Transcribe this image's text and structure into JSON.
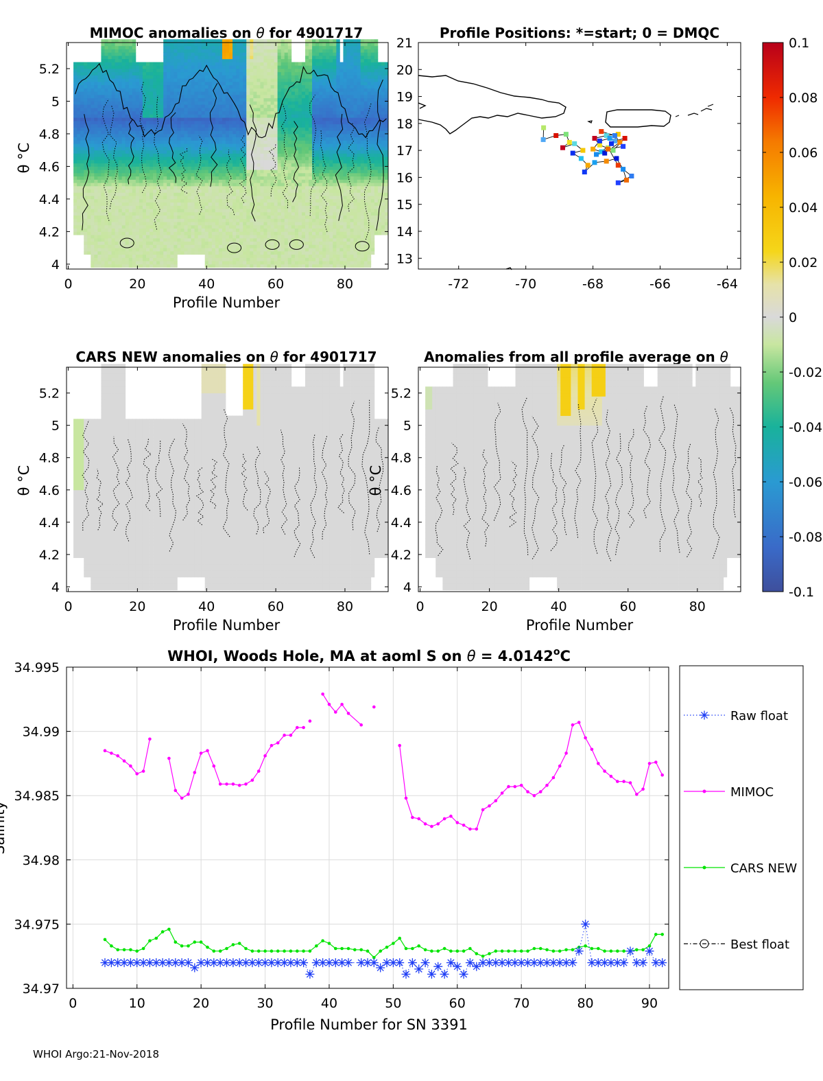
{
  "figure": {
    "footer": "WHOI Argo:21-Nov-2018",
    "colors": {
      "raw_float": "#1f3ef5",
      "mimoc": "#ff00ff",
      "cars": "#00e400",
      "best": "#000000",
      "contour": "#000000",
      "land": "#000000"
    }
  },
  "chart_data": [
    {
      "type": "heatmap",
      "title_parts": [
        "MIMOC anomalies on ",
        "θ",
        "  for 4901717"
      ],
      "xlabel": "Profile Number",
      "ylabel": "θ °C",
      "xlim": [
        -0.5,
        92.5
      ],
      "ylim": [
        3.97,
        5.36
      ],
      "xticks": [
        0,
        20,
        40,
        60,
        80
      ],
      "yticks": [
        4,
        4.2,
        4.4,
        4.6,
        4.8,
        5,
        5.2
      ],
      "colormap": "parula-jet",
      "clim": [
        -0.1,
        0.1
      ],
      "anomaly_pattern": "mimoc"
    },
    {
      "type": "scatter",
      "title": "Profile Positions: *=start; 0 = DMQC",
      "xlim": [
        -73.2,
        -63.6
      ],
      "ylim": [
        12.6,
        21.0
      ],
      "xticks": [
        -72,
        -70,
        -68,
        -66,
        -64
      ],
      "yticks": [
        13,
        14,
        15,
        16,
        17,
        18,
        19,
        20,
        21
      ],
      "track": [
        [
          -69.47,
          17.84
        ],
        [
          -69.48,
          17.4
        ],
        [
          -69.1,
          17.55
        ],
        [
          -68.8,
          17.6
        ],
        [
          -68.7,
          17.3
        ],
        [
          -68.9,
          17.1
        ],
        [
          -68.55,
          17.25
        ],
        [
          -68.3,
          17.0
        ],
        [
          -68.6,
          16.9
        ],
        [
          -68.35,
          16.7
        ],
        [
          -68.15,
          16.45
        ],
        [
          -68.25,
          16.2
        ],
        [
          -67.95,
          16.55
        ],
        [
          -67.6,
          16.6
        ],
        [
          -67.3,
          16.7
        ],
        [
          -67.1,
          16.3
        ],
        [
          -67.0,
          15.9
        ],
        [
          -67.25,
          15.8
        ],
        [
          -66.85,
          16.05
        ],
        [
          -67.25,
          16.45
        ],
        [
          -67.55,
          17.1
        ],
        [
          -67.35,
          17.35
        ],
        [
          -67.05,
          17.45
        ],
        [
          -67.4,
          17.0
        ],
        [
          -67.8,
          17.2
        ],
        [
          -67.95,
          17.45
        ],
        [
          -67.6,
          17.55
        ],
        [
          -67.25,
          17.6
        ],
        [
          -67.45,
          17.25
        ],
        [
          -67.75,
          16.95
        ],
        [
          -68.0,
          17.05
        ],
        [
          -67.8,
          17.35
        ],
        [
          -67.5,
          17.45
        ],
        [
          -67.2,
          17.3
        ],
        [
          -67.65,
          16.9
        ],
        [
          -67.9,
          16.85
        ],
        [
          -67.55,
          17.05
        ],
        [
          -67.1,
          17.15
        ],
        [
          -67.35,
          17.55
        ],
        [
          -67.75,
          17.7
        ]
      ],
      "colorbar": {
        "ticks": [
          0.1,
          0.08,
          0.06,
          0.04,
          0.02,
          0,
          -0.02,
          -0.04,
          -0.06,
          -0.08,
          -0.1
        ],
        "tick_labels": [
          "0.1",
          "0.08",
          "0.06",
          "0.04",
          "0.02",
          "0",
          "-0.02",
          "-0.04",
          "-0.06",
          "-0.08",
          "-0.1"
        ]
      }
    },
    {
      "type": "heatmap",
      "title_parts": [
        "CARS NEW anomalies on ",
        "θ",
        " for 4901717"
      ],
      "xlabel": "Profile Number",
      "ylabel": "θ °C",
      "xlim": [
        -0.5,
        92.5
      ],
      "ylim": [
        3.97,
        5.36
      ],
      "xticks": [
        0,
        20,
        40,
        60,
        80
      ],
      "yticks": [
        4,
        4.2,
        4.4,
        4.6,
        4.8,
        5,
        5.2
      ],
      "colormap": "parula-jet",
      "clim": [
        -0.1,
        0.1
      ],
      "anomaly_pattern": "cars"
    },
    {
      "type": "heatmap",
      "title_parts": [
        "Anomalies from all profile average on ",
        "θ",
        ""
      ],
      "xlabel": "Profile Number",
      "ylabel": "θ °C",
      "xlim": [
        -0.5,
        92.5
      ],
      "ylim": [
        3.97,
        5.36
      ],
      "xticks": [
        0,
        20,
        40,
        60,
        80
      ],
      "yticks": [
        4,
        4.2,
        4.4,
        4.6,
        4.8,
        5,
        5.2
      ],
      "colormap": "parula-jet",
      "clim": [
        -0.1,
        0.1
      ],
      "anomaly_pattern": "avg"
    },
    {
      "type": "line",
      "title_parts": [
        "WHOI, Woods Hole, MA at aoml S on ",
        "θ",
        " = 4.0142",
        "o",
        "C"
      ],
      "xlabel": "Profile Number for SN 3391",
      "ylabel": "Salinity",
      "xlim": [
        -1,
        93
      ],
      "ylim": [
        34.97,
        34.995
      ],
      "xticks": [
        0,
        10,
        20,
        30,
        40,
        50,
        60,
        70,
        80,
        90
      ],
      "yticks": [
        34.97,
        34.975,
        34.98,
        34.985,
        34.99,
        34.995
      ],
      "ytick_labels": [
        "34.97",
        "34.975",
        "34.98",
        "34.985",
        "34.99",
        "34.995"
      ],
      "grid": true,
      "legend_position": "right-outside",
      "series": [
        {
          "name": "Raw float",
          "marker": "asterisk",
          "line": "dotted",
          "x": [
            5,
            6,
            7,
            8,
            9,
            10,
            11,
            12,
            13,
            14,
            15,
            16,
            17,
            18,
            19,
            20,
            21,
            22,
            23,
            24,
            25,
            26,
            27,
            28,
            29,
            30,
            31,
            32,
            33,
            34,
            35,
            36,
            37,
            38,
            39,
            40,
            41,
            42,
            43,
            45,
            46,
            47,
            48,
            49,
            50,
            51,
            52,
            53,
            54,
            55,
            56,
            57,
            58,
            59,
            60,
            61,
            62,
            63,
            64,
            65,
            66,
            67,
            68,
            69,
            70,
            71,
            72,
            73,
            74,
            75,
            76,
            77,
            78,
            79,
            80,
            81,
            82,
            83,
            84,
            85,
            86,
            87,
            88,
            89,
            90,
            91,
            92
          ],
          "y": [
            34.972,
            34.972,
            34.972,
            34.972,
            34.972,
            34.972,
            34.972,
            34.972,
            34.972,
            34.972,
            34.972,
            34.972,
            34.972,
            34.972,
            34.9716,
            34.972,
            34.972,
            34.972,
            34.972,
            34.972,
            34.972,
            34.972,
            34.972,
            34.972,
            34.972,
            34.972,
            34.972,
            34.972,
            34.972,
            34.972,
            34.972,
            34.972,
            34.9711,
            34.972,
            34.972,
            34.972,
            34.972,
            34.972,
            34.972,
            34.972,
            34.972,
            34.972,
            34.9716,
            34.972,
            34.972,
            34.972,
            34.9711,
            34.972,
            34.9715,
            34.972,
            34.9711,
            34.9717,
            34.9711,
            34.972,
            34.9717,
            34.9711,
            34.972,
            34.9717,
            34.972,
            34.972,
            34.972,
            34.972,
            34.972,
            34.972,
            34.972,
            34.972,
            34.972,
            34.972,
            34.972,
            34.972,
            34.972,
            34.972,
            34.972,
            34.9729,
            34.975,
            34.972,
            34.972,
            34.972,
            34.972,
            34.972,
            34.972,
            34.9729,
            34.972,
            34.972,
            34.9729,
            34.972,
            34.972
          ]
        },
        {
          "name": "MIMOC",
          "marker": "dot",
          "line": "solid",
          "segments": [
            {
              "x": [
                5,
                6,
                7,
                8,
                9,
                10,
                11,
                12
              ],
              "y": [
                34.9885,
                34.9883,
                34.9881,
                34.9877,
                34.9873,
                34.9867,
                34.9869,
                34.9894
              ]
            },
            {
              "x": [
                15,
                16,
                17,
                18,
                19,
                20,
                21,
                22,
                23,
                24,
                25,
                26,
                27,
                28,
                29,
                30,
                31,
                32,
                33,
                34,
                35,
                36
              ],
              "y": [
                34.9879,
                34.9854,
                34.9848,
                34.9851,
                34.9868,
                34.9883,
                34.9885,
                34.9873,
                34.9859,
                34.9859,
                34.9859,
                34.9858,
                34.9859,
                34.9862,
                34.9869,
                34.9881,
                34.9889,
                34.9891,
                34.9897,
                34.9897,
                34.9903,
                34.9903
              ]
            },
            {
              "x": [
                37
              ],
              "y": [
                34.9908
              ]
            },
            {
              "x": [
                39,
                40,
                41,
                42,
                43,
                45
              ],
              "y": [
                34.9929,
                34.9921,
                34.9915,
                34.9921,
                34.9914,
                34.9905
              ]
            },
            {
              "x": [
                47
              ],
              "y": [
                34.9919
              ]
            },
            {
              "x": [
                51,
                52,
                53,
                54,
                55,
                56,
                57,
                58,
                59,
                60,
                61,
                62,
                63,
                64,
                65,
                66,
                67,
                68,
                69,
                70,
                71,
                72,
                73,
                74,
                75,
                76,
                77,
                78,
                79,
                80,
                81,
                82,
                83,
                84,
                85,
                86,
                87,
                88,
                89,
                90,
                91,
                92
              ],
              "y": [
                34.9889,
                34.9848,
                34.9833,
                34.9832,
                34.9828,
                34.9826,
                34.9828,
                34.9832,
                34.9834,
                34.9829,
                34.9827,
                34.9824,
                34.9824,
                34.9839,
                34.9842,
                34.9846,
                34.9852,
                34.9857,
                34.9857,
                34.9858,
                34.9853,
                34.985,
                34.9853,
                34.9858,
                34.9864,
                34.9873,
                34.9883,
                34.9905,
                34.9907,
                34.9895,
                34.9886,
                34.9875,
                34.9869,
                34.9865,
                34.9861,
                34.9861,
                34.986,
                34.9851,
                34.9855,
                34.9875,
                34.9876,
                34.9866
              ]
            }
          ]
        },
        {
          "name": "CARS NEW",
          "marker": "dot",
          "line": "solid",
          "x": [
            5,
            6,
            7,
            8,
            9,
            10,
            11,
            12,
            13,
            14,
            15,
            16,
            17,
            18,
            19,
            20,
            21,
            22,
            23,
            24,
            25,
            26,
            27,
            28,
            29,
            30,
            31,
            32,
            33,
            34,
            35,
            36,
            37,
            38,
            39,
            40,
            41,
            42,
            43,
            44,
            45,
            46,
            47,
            48,
            49,
            50,
            51,
            52,
            53,
            54,
            55,
            56,
            57,
            58,
            59,
            60,
            61,
            62,
            63,
            64,
            65,
            66,
            67,
            68,
            69,
            70,
            71,
            72,
            73,
            74,
            75,
            76,
            77,
            78,
            79,
            80,
            81,
            82,
            83,
            84,
            85,
            86,
            87,
            88,
            89,
            90,
            91,
            92
          ],
          "y": [
            34.9738,
            34.9733,
            34.973,
            34.973,
            34.973,
            34.9729,
            34.9731,
            34.9737,
            34.9739,
            34.9744,
            34.9746,
            34.9736,
            34.9733,
            34.9733,
            34.9736,
            34.9736,
            34.9732,
            34.9729,
            34.9729,
            34.9731,
            34.9734,
            34.9735,
            34.9731,
            34.9729,
            34.9729,
            34.9729,
            34.9729,
            34.9729,
            34.9729,
            34.9729,
            34.9729,
            34.9729,
            34.9729,
            34.9733,
            34.9737,
            34.9735,
            34.9731,
            34.9731,
            34.9731,
            34.973,
            34.973,
            34.9729,
            34.9724,
            34.9729,
            34.9732,
            34.9735,
            34.9739,
            34.9731,
            34.9731,
            34.9733,
            34.973,
            34.9729,
            34.9729,
            34.9731,
            34.9729,
            34.9729,
            34.9729,
            34.9731,
            34.9727,
            34.9725,
            34.9727,
            34.9729,
            34.9729,
            34.9729,
            34.9729,
            34.9729,
            34.9729,
            34.9731,
            34.9731,
            34.973,
            34.9729,
            34.9729,
            34.973,
            34.973,
            34.9732,
            34.9733,
            34.9731,
            34.9731,
            34.9729,
            34.9729,
            34.9729,
            34.9729,
            34.9729,
            34.973,
            34.973,
            34.9733,
            34.9742,
            34.9742
          ]
        },
        {
          "name": "Best float",
          "marker": "circle",
          "line": "dashdot",
          "x": [],
          "y": []
        }
      ]
    }
  ]
}
